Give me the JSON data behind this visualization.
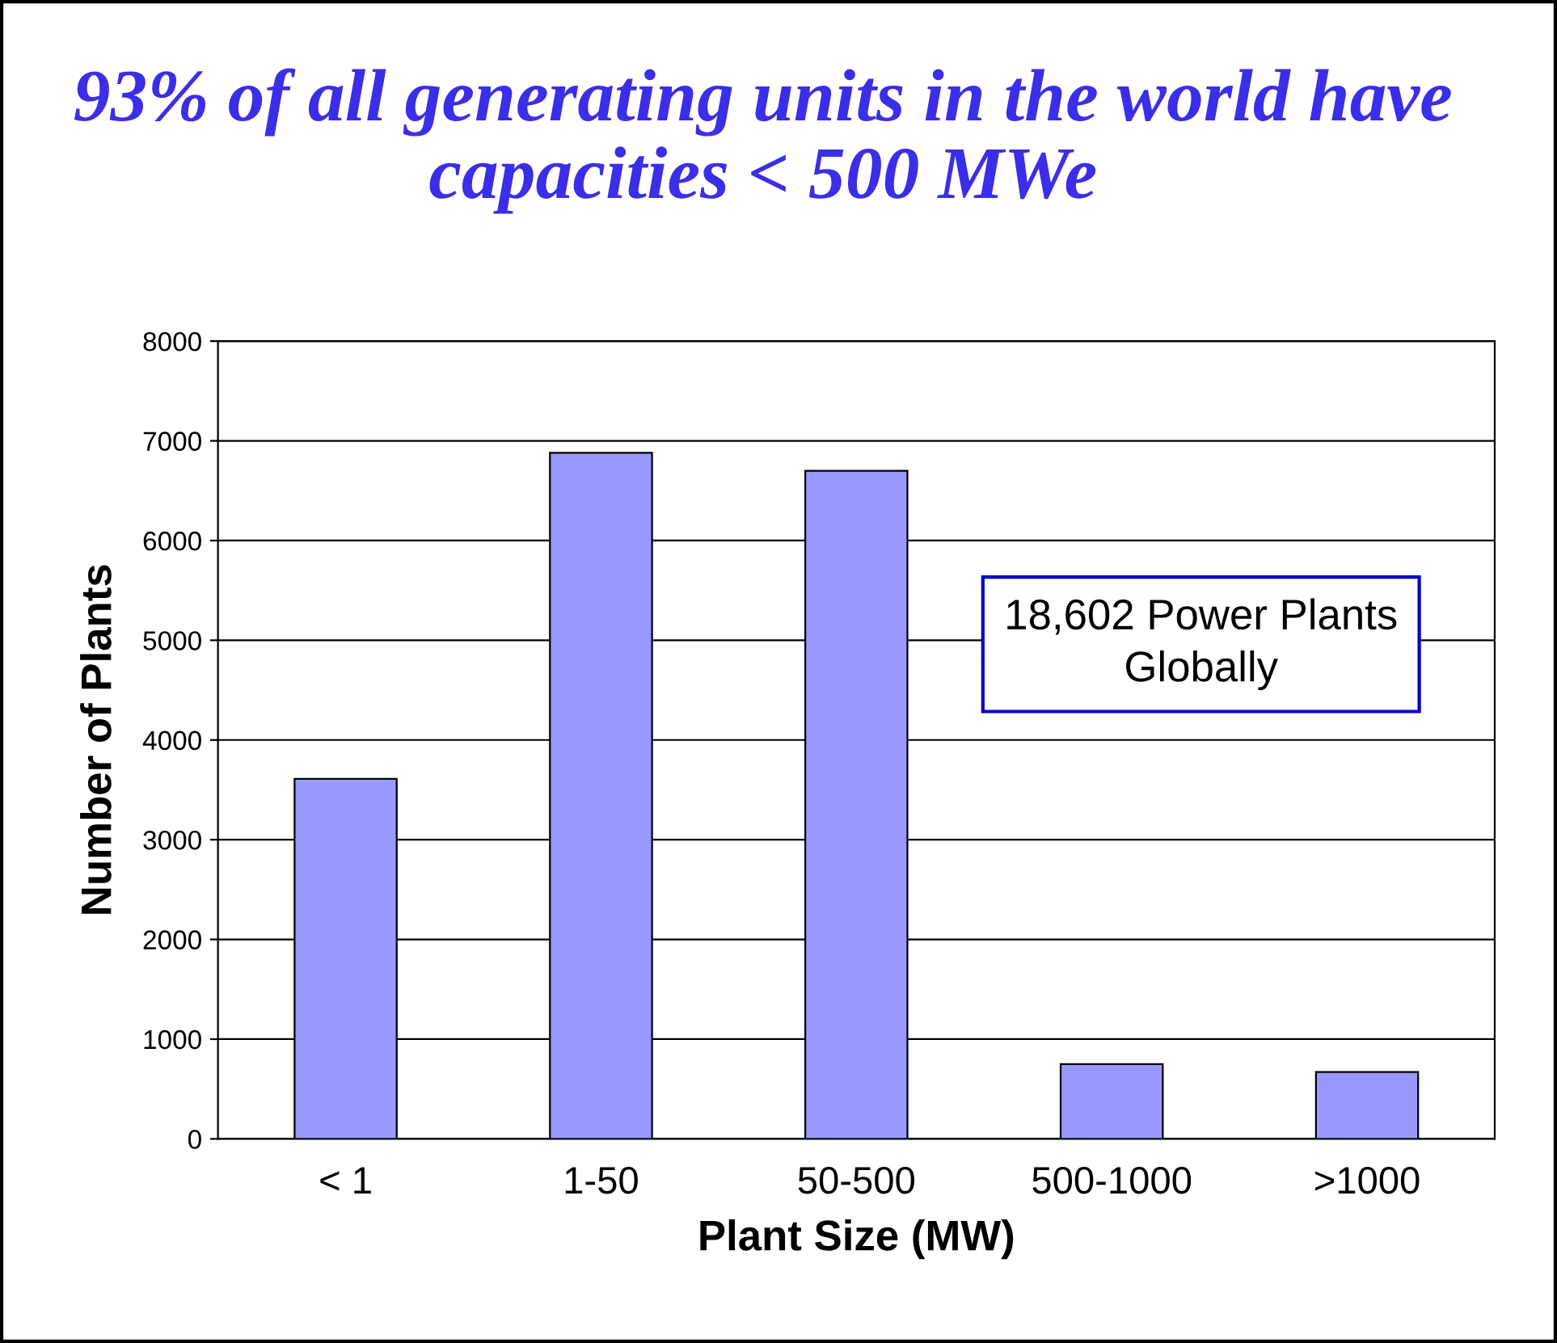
{
  "chart_data": {
    "type": "bar",
    "title": "93% of all generating units in the world have capacities < 500 MWe",
    "xlabel": "Plant Size (MW)",
    "ylabel": "Number of Plants",
    "categories": [
      "< 1",
      "1-50",
      "50-500",
      "500-1000",
      ">1000"
    ],
    "series": [
      {
        "color": "#9999ff",
        "values": [
          3610,
          6880,
          6700,
          750,
          670
        ]
      }
    ],
    "ylim": [
      0,
      8000
    ],
    "yticks": [
      0,
      1000,
      2000,
      3000,
      4000,
      5000,
      6000,
      7000,
      8000
    ],
    "grid": "y",
    "annotations": [
      "18,602 Power Plants Globally"
    ]
  }
}
